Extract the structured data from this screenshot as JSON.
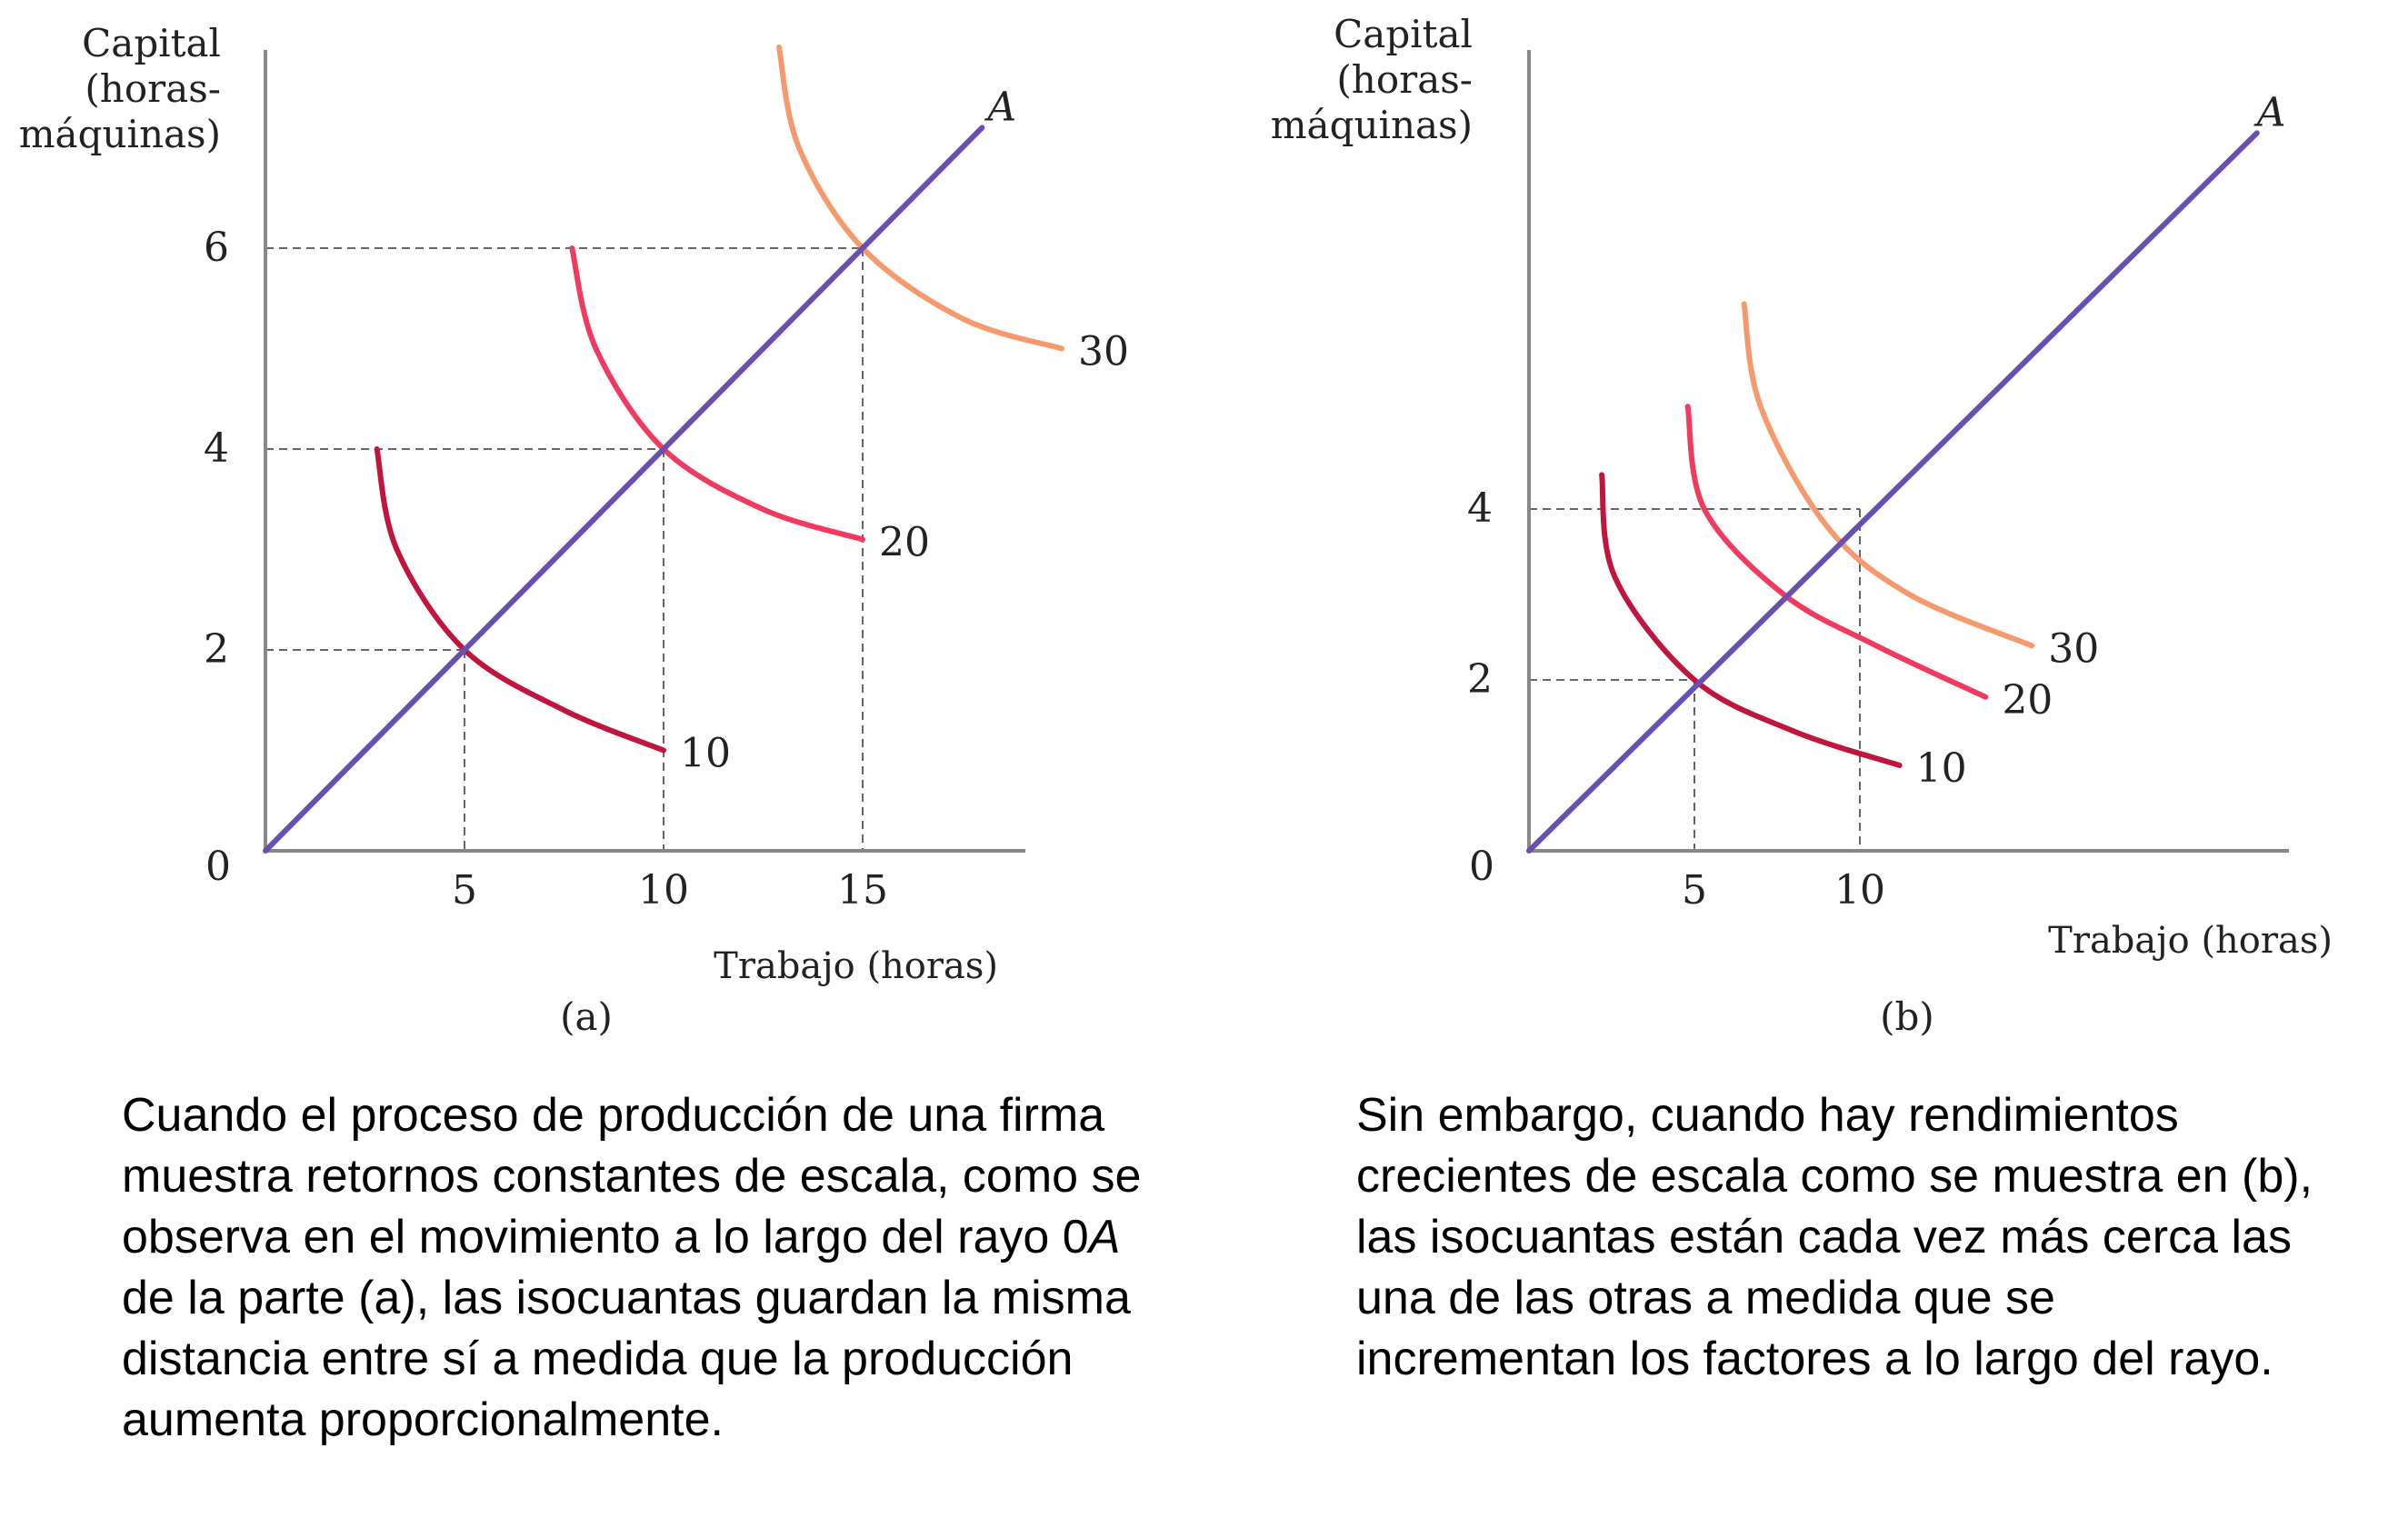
{
  "chart_data": [
    {
      "type": "line",
      "panel_label": "(a)",
      "ylabel_lines": [
        "Capital",
        "(horas-",
        "máquinas)"
      ],
      "xlabel": "Trabajo (horas)",
      "x_ticks": [
        0,
        5,
        10,
        15
      ],
      "y_ticks": [
        2,
        4,
        6
      ],
      "origin_label": "0",
      "ray": {
        "label": "A",
        "from": [
          0,
          0
        ],
        "to": [
          18,
          7.2
        ]
      },
      "series": [
        {
          "name": "10",
          "color": "#c0163d",
          "points": [
            [
              2.8,
              4.0
            ],
            [
              3.3,
              3.0
            ],
            [
              5.0,
              2.0
            ],
            [
              7.5,
              1.4
            ],
            [
              10.0,
              1.0
            ]
          ]
        },
        {
          "name": "20",
          "color": "#f03a5e",
          "points": [
            [
              7.7,
              6.0
            ],
            [
              8.3,
              5.0
            ],
            [
              10.0,
              4.0
            ],
            [
              12.5,
              3.4
            ],
            [
              15.0,
              3.1
            ]
          ]
        },
        {
          "name": "30",
          "color": "#f6996d",
          "points": [
            [
              12.9,
              8.0
            ],
            [
              13.4,
              7.0
            ],
            [
              15.0,
              6.0
            ],
            [
              17.5,
              5.3
            ],
            [
              20.0,
              5.0
            ]
          ]
        }
      ],
      "guides": [
        [
          5,
          2
        ],
        [
          10,
          4
        ],
        [
          15,
          6
        ]
      ]
    },
    {
      "type": "line",
      "panel_label": "(b)",
      "ylabel_lines": [
        "Capital",
        "(horas-",
        "máquinas)"
      ],
      "xlabel": "Trabajo (horas)",
      "x_ticks": [
        0,
        5,
        10
      ],
      "y_ticks": [
        2,
        4
      ],
      "origin_label": "0",
      "ray": {
        "label": "A",
        "from": [
          0,
          0
        ],
        "to": [
          22,
          8.4
        ]
      },
      "series": [
        {
          "name": "10",
          "color": "#c0163d",
          "points": [
            [
              2.2,
              4.4
            ],
            [
              2.6,
              3.2
            ],
            [
              5.0,
              2.0
            ],
            [
              8.0,
              1.4
            ],
            [
              11.2,
              1.0
            ]
          ]
        },
        {
          "name": "20",
          "color": "#f03a5e",
          "points": [
            [
              4.8,
              5.2
            ],
            [
              5.3,
              4.0
            ],
            [
              7.7,
              3.0
            ],
            [
              10.5,
              2.4
            ],
            [
              13.8,
              1.8
            ]
          ]
        },
        {
          "name": "30",
          "color": "#f6996d",
          "points": [
            [
              6.5,
              6.4
            ],
            [
              7.0,
              5.2
            ],
            [
              9.0,
              3.8
            ],
            [
              11.5,
              3.0
            ],
            [
              15.2,
              2.4
            ]
          ]
        }
      ],
      "guides": [
        [
          5,
          2
        ],
        [
          10,
          4
        ]
      ]
    }
  ],
  "captions": {
    "a": "Cuando el proceso de producción de una firma\nmuestra retornos constantes de escala, como se\nobserva en el movimiento a lo largo del rayo 0A\nde la parte (a), las isocuantas guardan la misma\ndistancia entre sí a medida que la producción\naumenta proporcionalmente.",
    "b": "Sin embargo, cuando hay rendimientos\ncrecientes de escala como se muestra en (b),\nlas isocuantas están cada vez más cerca las\nuna de las otras a medida que se\nincrementan los factores a lo largo del rayo."
  },
  "colors": {
    "ray": "#6a4fb3",
    "axis": "#888888",
    "guide": "#666666"
  }
}
